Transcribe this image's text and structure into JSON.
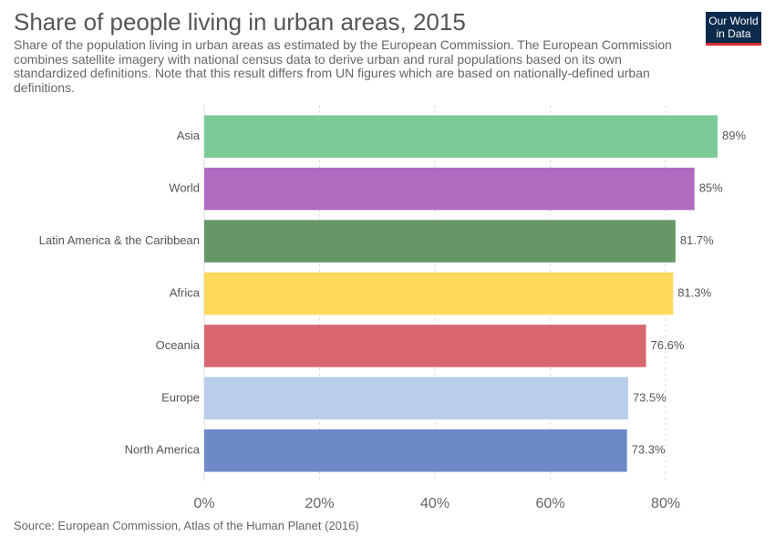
{
  "chart_data": {
    "type": "bar",
    "orientation": "horizontal",
    "title": "Share of people living in urban areas, 2015",
    "subtitle": "Share of the population living in urban areas as estimated by the European Commission. The European Commission combines satellite imagery with national census data to derive urban and rural populations based on its own standardized definitions. Note that this result differs from UN figures which are based on nationally-defined urban definitions.",
    "categories": [
      "Asia",
      "World",
      "Latin America & the Caribbean",
      "Africa",
      "Oceania",
      "Europe",
      "North America"
    ],
    "values": [
      89,
      85,
      81.7,
      81.3,
      76.6,
      73.5,
      73.3
    ],
    "value_labels": [
      "89%",
      "85%",
      "81.7%",
      "81.3%",
      "76.6%",
      "73.5%",
      "73.3%"
    ],
    "colors": [
      "#7ecb97",
      "#b06bc1",
      "#669766",
      "#fed95a",
      "#d9666f",
      "#b9ceea",
      "#6e89c8"
    ],
    "xlim": [
      0,
      89
    ],
    "xticks": [
      0,
      20,
      40,
      60,
      80
    ],
    "xtick_labels": [
      "0%",
      "20%",
      "40%",
      "60%",
      "80%"
    ],
    "grid": "vertical-dashed",
    "source": "Source: European Commission, Atlas of the Human Planet (2016)"
  },
  "logo": {
    "line1": "Our World",
    "line2": "in Data"
  }
}
